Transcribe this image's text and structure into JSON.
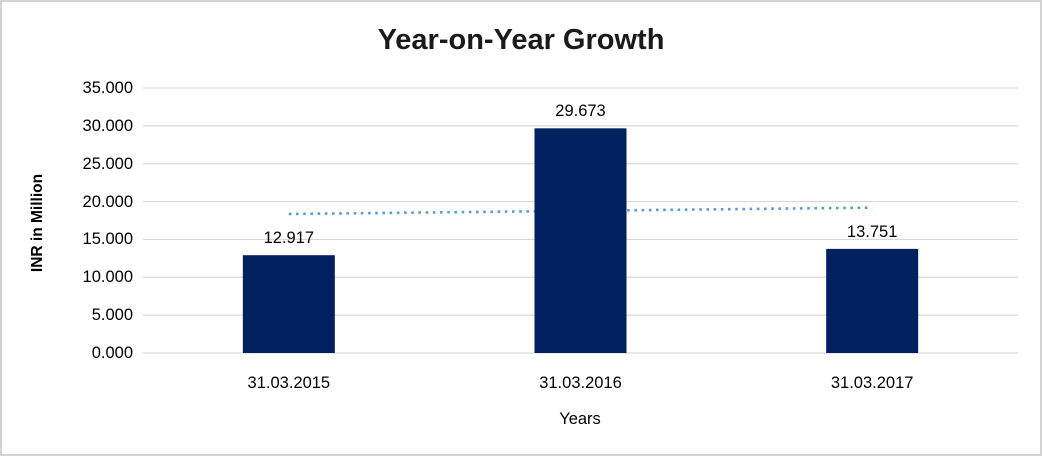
{
  "frame": {
    "border_color": "#d2d2d2",
    "background": "#ffffff"
  },
  "chart_data": {
    "type": "bar",
    "title": "Year-on-Year Growth",
    "categories": [
      "31.03.2015",
      "31.03.2016",
      "31.03.2017"
    ],
    "values": [
      12.917,
      29.673,
      13.751
    ],
    "data_labels": [
      "12.917",
      "29.673",
      "13.751"
    ],
    "xlabel": "Years",
    "ylabel": "INR in Million",
    "ylim": [
      0,
      35
    ],
    "ytick_step": 5,
    "ytick_labels": [
      "0.000",
      "5.000",
      "10.000",
      "15.000",
      "20.000",
      "25.000",
      "30.000",
      "35.000"
    ],
    "grid": true,
    "legend": "none",
    "bar_color": "#002060",
    "gridline_color": "#d9d9d9",
    "axis_text_color": "#000000",
    "title_color": "#1a1a1a",
    "trendline": {
      "type": "linear",
      "style": "dotted",
      "color": "#5b9bd5",
      "start_value": 18.36,
      "end_value": 19.2
    }
  }
}
